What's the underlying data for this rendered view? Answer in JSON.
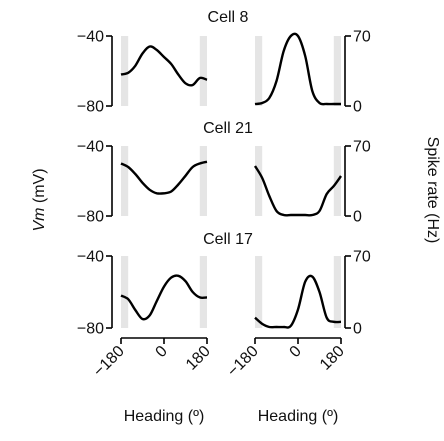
{
  "figure": {
    "ylabel_left_var": "Vm",
    "ylabel_left_unit": " (mV)",
    "ylabel_right": "Spike rate (Hz)",
    "shade_color": "#e5e5e5",
    "line_color": "#000000"
  },
  "chart_data": [
    {
      "type": "line",
      "title": "Cell 8",
      "x": [
        -180,
        -150,
        -120,
        -90,
        -60,
        -30,
        0,
        30,
        60,
        90,
        120,
        150,
        180
      ],
      "vm": {
        "ylim": [
          -80,
          -40
        ],
        "ticks": [
          -80,
          -40
        ],
        "tick_labels": [
          "−80",
          "−40"
        ],
        "values": [
          -62,
          -61,
          -57,
          -50,
          -46,
          -48,
          -52,
          -56,
          -62,
          -67,
          -68,
          -64,
          -65
        ]
      },
      "rate": {
        "ylim": [
          0,
          70
        ],
        "ticks": [
          0,
          70
        ],
        "tick_labels": [
          "0",
          "70"
        ],
        "values": [
          2,
          3,
          8,
          25,
          55,
          70,
          70,
          50,
          15,
          3,
          2,
          2,
          2
        ]
      },
      "shaded_ranges": [
        [
          -180,
          -150
        ],
        [
          150,
          180
        ]
      ]
    },
    {
      "type": "line",
      "title": "Cell 21",
      "x": [
        -180,
        -150,
        -120,
        -90,
        -60,
        -30,
        0,
        30,
        60,
        90,
        120,
        150,
        180
      ],
      "vm": {
        "ylim": [
          -80,
          -40
        ],
        "ticks": [
          -80,
          -40
        ],
        "tick_labels": [
          "−80",
          "−40"
        ],
        "values": [
          -50,
          -52,
          -56,
          -61,
          -65,
          -67,
          -67,
          -66,
          -62,
          -57,
          -52,
          -50,
          -49
        ]
      },
      "rate": {
        "ylim": [
          0,
          70
        ],
        "ticks": [
          0,
          70
        ],
        "tick_labels": [
          "0",
          "70"
        ],
        "values": [
          50,
          38,
          20,
          5,
          1,
          1,
          1,
          1,
          1,
          5,
          22,
          30,
          40
        ]
      },
      "shaded_ranges": [
        [
          -180,
          -150
        ],
        [
          150,
          180
        ]
      ]
    },
    {
      "type": "line",
      "title": "Cell 17",
      "x": [
        -180,
        -150,
        -120,
        -90,
        -60,
        -30,
        0,
        30,
        60,
        90,
        120,
        150,
        180
      ],
      "vm": {
        "ylim": [
          -80,
          -40
        ],
        "ticks": [
          -80,
          -40
        ],
        "tick_labels": [
          "−80",
          "−40"
        ],
        "values": [
          -62,
          -64,
          -70,
          -75,
          -73,
          -65,
          -57,
          -52,
          -51,
          -54,
          -60,
          -63,
          -63
        ]
      },
      "rate": {
        "ylim": [
          0,
          70
        ],
        "ticks": [
          0,
          70
        ],
        "tick_labels": [
          "0",
          "70"
        ],
        "values": [
          10,
          4,
          1,
          1,
          1,
          2,
          18,
          45,
          50,
          35,
          10,
          6,
          6
        ]
      },
      "shaded_ranges": [
        [
          -180,
          -150
        ],
        [
          150,
          180
        ]
      ]
    }
  ],
  "x_axis": {
    "ticks": [
      -180,
      0,
      180
    ],
    "tick_labels": [
      "−180",
      "0",
      "180"
    ],
    "xlabel": "Heading (º)"
  }
}
